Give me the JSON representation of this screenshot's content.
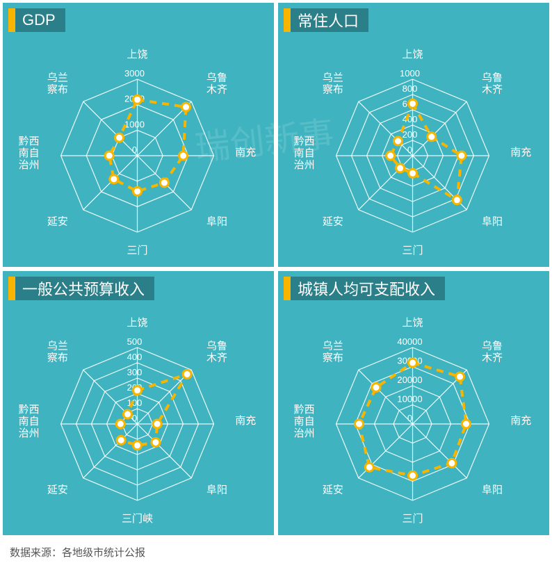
{
  "footer_text": "数据来源：各地级市统计公报",
  "colors": {
    "panel_bg": "#3fb4c0",
    "title_bg": "#2a7f88",
    "title_accent": "#f7b500",
    "grid_line": "#ffffff",
    "series_line": "#f7b500",
    "marker_fill": "#ffffff",
    "text": "#ffffff"
  },
  "axes": [
    "上饶",
    "乌鲁木齐",
    "南充",
    "阜阳",
    "三门峡",
    "延安",
    "黔西南自治州",
    "乌兰察布"
  ],
  "charts": [
    {
      "title": "GDP",
      "ticks": [
        0,
        1000,
        2000,
        3000
      ],
      "max": 3000,
      "values": [
        2200,
        2700,
        1800,
        1500,
        1400,
        1300,
        1100,
        1000
      ],
      "axis_label_offsets": {
        "4": "三门"
      }
    },
    {
      "title": "常住人口",
      "ticks": [
        0,
        200,
        400,
        600,
        800,
        1000
      ],
      "max": 1000,
      "values": [
        680,
        350,
        640,
        820,
        230,
        230,
        290,
        270
      ],
      "axis_label_offsets": {
        "4": "三门"
      }
    },
    {
      "title": "一般公共预算收入",
      "ticks": [
        0,
        100,
        200,
        300,
        400,
        500
      ],
      "max": 500,
      "values": [
        220,
        460,
        130,
        170,
        140,
        150,
        110,
        90
      ]
    },
    {
      "title": "城镇人均可支配收入",
      "ticks": [
        0,
        10000,
        20000,
        30000,
        40000
      ],
      "max": 40000,
      "values": [
        32000,
        35000,
        28000,
        29000,
        27000,
        32000,
        28000,
        27000
      ],
      "axis_label_offsets": {
        "4": "三门"
      }
    }
  ],
  "watermark": "瑞创新事"
}
